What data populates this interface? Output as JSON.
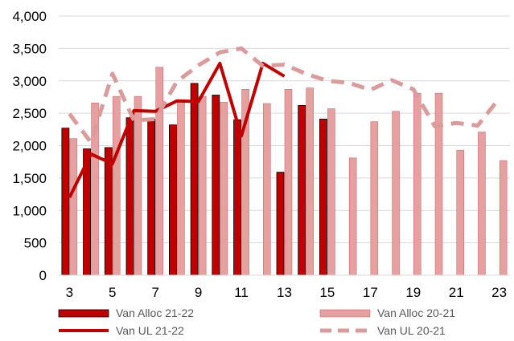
{
  "chart_data": {
    "type": "bar",
    "categories": [
      "3",
      "4",
      "5",
      "6",
      "7",
      "8",
      "9",
      "10",
      "11",
      "12",
      "13",
      "14",
      "15",
      "16",
      "17",
      "18",
      "19",
      "20",
      "21",
      "22",
      "23"
    ],
    "x_tick_labels": [
      "3",
      "5",
      "7",
      "9",
      "11",
      "13",
      "15",
      "17",
      "19",
      "21",
      "23"
    ],
    "ylim": [
      0,
      4000
    ],
    "y_tick_labels": [
      "0",
      "500",
      "1,000",
      "1,500",
      "2,000",
      "2,500",
      "3,000",
      "3,500",
      "4,000"
    ],
    "grid": true,
    "legend_position": "bottom",
    "series": [
      {
        "name": "Van Alloc 21-22",
        "kind": "bar",
        "color": "#c00000",
        "values": [
          2270,
          1950,
          1970,
          2430,
          2410,
          2320,
          2960,
          2780,
          2400,
          null,
          1590,
          2620,
          2410,
          null,
          null,
          null,
          null,
          null,
          null,
          null,
          null
        ]
      },
      {
        "name": "Van Alloc 20-21",
        "kind": "bar",
        "color": "#e6a0a0",
        "values": [
          2110,
          2660,
          2760,
          2760,
          3210,
          2690,
          2760,
          2670,
          2870,
          2650,
          2870,
          2890,
          2570,
          1810,
          2370,
          2530,
          2810,
          2810,
          1930,
          2210,
          1770
        ]
      },
      {
        "name": "Van UL 21-22",
        "kind": "line",
        "color": "#c00000",
        "values": [
          1200,
          1870,
          1720,
          2540,
          2530,
          2690,
          2680,
          3270,
          2150,
          3270,
          3070,
          null,
          null,
          null,
          null,
          null,
          null,
          null,
          null,
          null,
          null
        ]
      },
      {
        "name": "Van UL 20-21",
        "kind": "dashed-line",
        "color": "#dc9b9b",
        "values": [
          2490,
          2050,
          3110,
          2390,
          2410,
          2990,
          3240,
          3440,
          3500,
          3230,
          3250,
          3110,
          3000,
          2970,
          2860,
          3010,
          2870,
          2300,
          2350,
          2310,
          2730
        ]
      }
    ]
  }
}
